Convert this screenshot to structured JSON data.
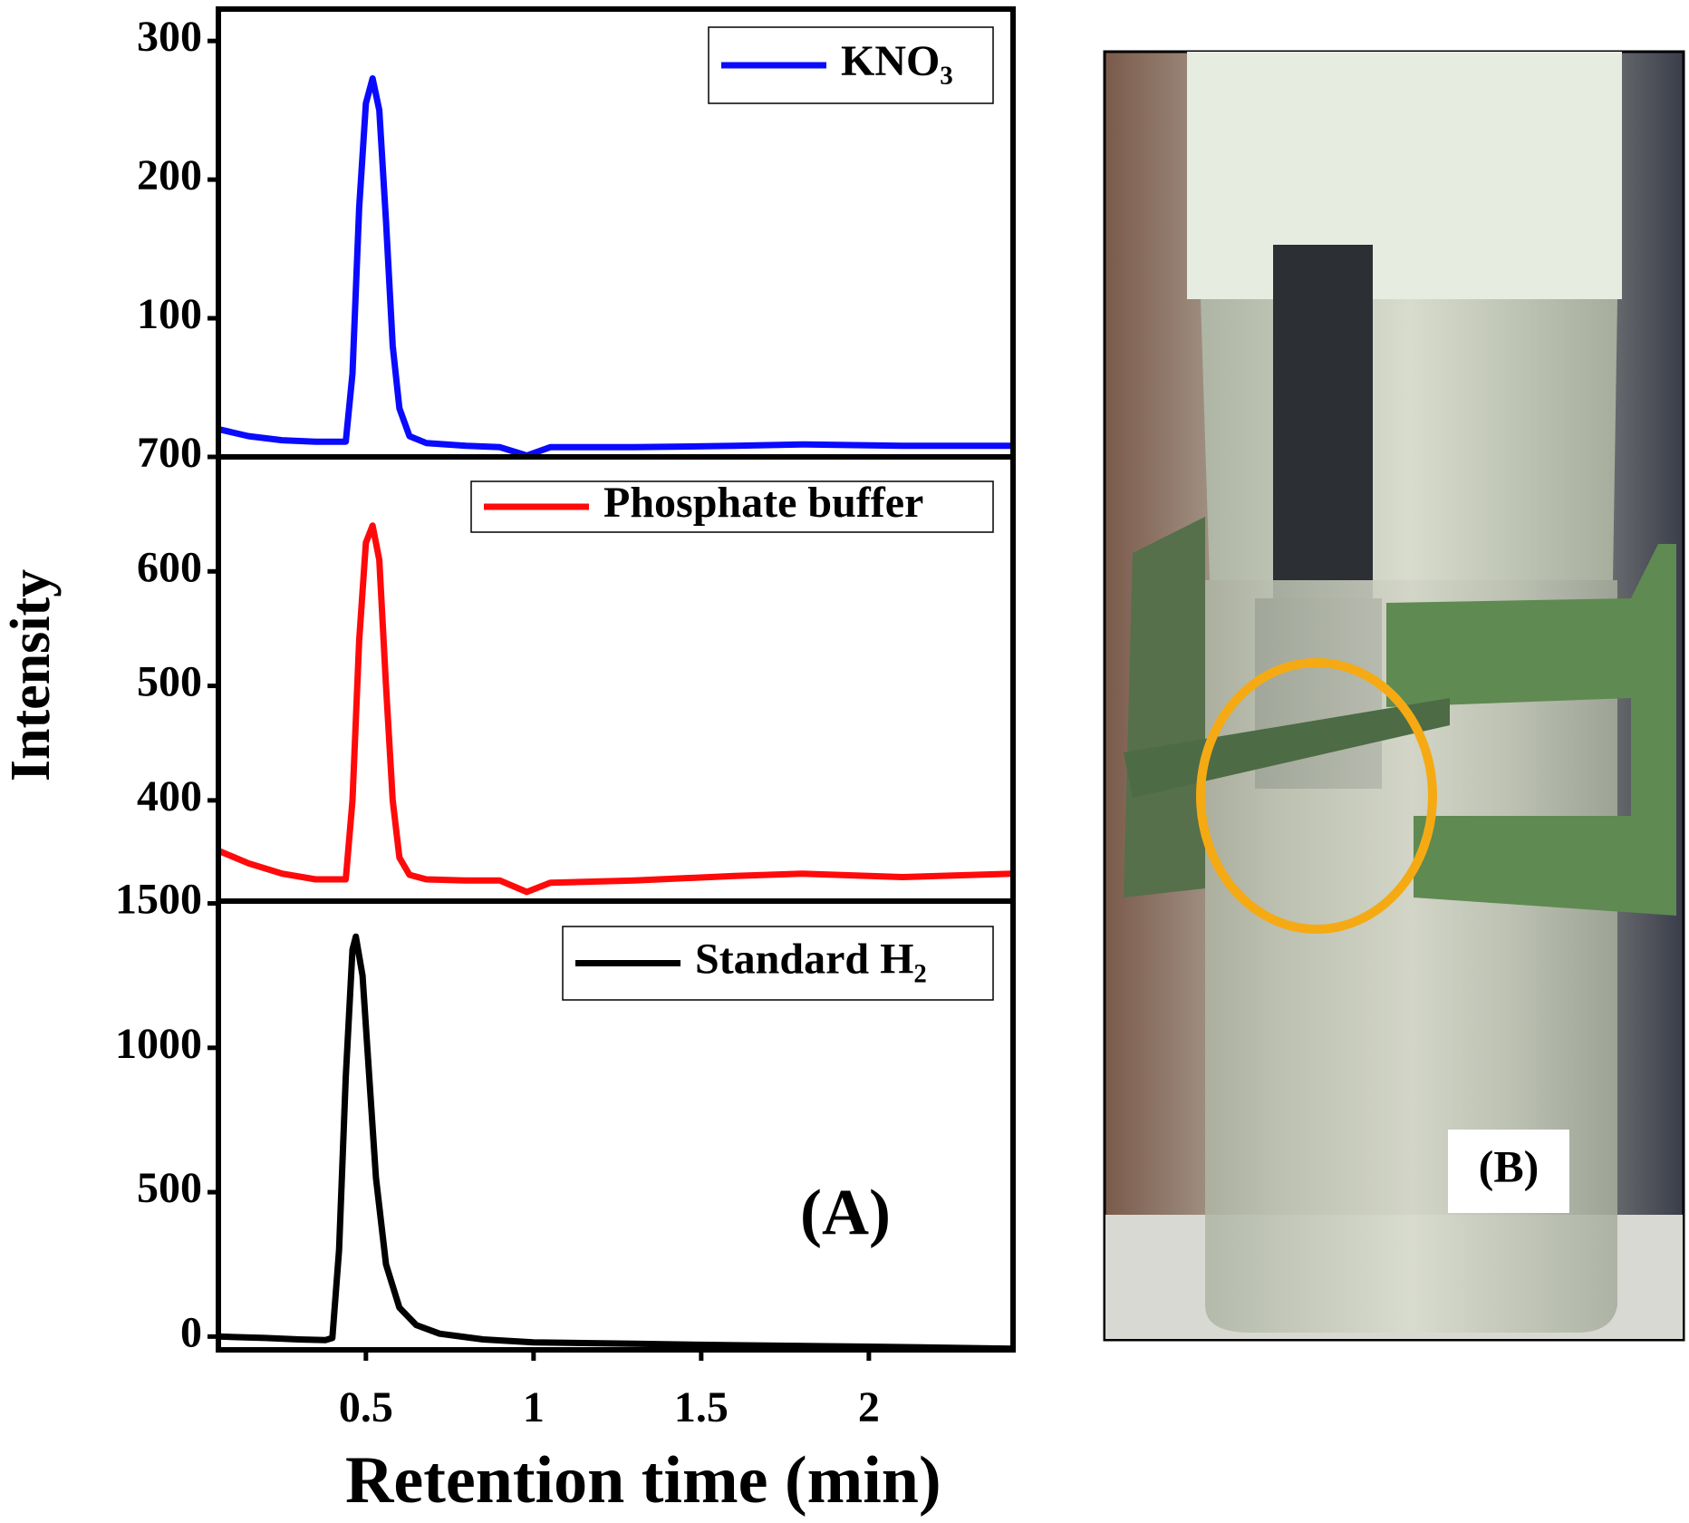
{
  "chart_data": [
    {
      "type": "line",
      "x": [
        0.06,
        0.15,
        0.25,
        0.35,
        0.44,
        0.46,
        0.48,
        0.5,
        0.52,
        0.54,
        0.56,
        0.58,
        0.6,
        0.63,
        0.68,
        0.8,
        0.9,
        0.98,
        1.05,
        1.3,
        1.6,
        1.8,
        2.1,
        2.43
      ],
      "series": [
        {
          "name": "KNO₃",
          "color": "#0a0aff",
          "values": [
            20,
            15,
            12,
            11,
            11,
            60,
            180,
            255,
            273,
            250,
            170,
            80,
            35,
            15,
            10,
            8,
            7,
            1,
            7,
            7,
            8,
            9,
            8,
            8
          ]
        }
      ],
      "ylim": [
        0,
        323
      ],
      "yticks": [
        100,
        200,
        300
      ]
    },
    {
      "type": "line",
      "x": [
        0.06,
        0.15,
        0.25,
        0.35,
        0.44,
        0.46,
        0.48,
        0.5,
        0.52,
        0.54,
        0.56,
        0.58,
        0.6,
        0.63,
        0.68,
        0.8,
        0.9,
        0.98,
        1.05,
        1.3,
        1.6,
        1.8,
        2.1,
        2.43
      ],
      "series": [
        {
          "name": "Phosphate buffer",
          "color": "#ff0a0a",
          "values": [
            356,
            345,
            336,
            331,
            331,
            400,
            540,
            625,
            640,
            610,
            500,
            400,
            350,
            335,
            331,
            330,
            330,
            320,
            328,
            330,
            334,
            336,
            333,
            336
          ]
        }
      ],
      "ylim": [
        312,
        700
      ],
      "yticks": [
        400,
        500,
        600,
        700
      ],
      "ylabel": "Intensity"
    },
    {
      "type": "line",
      "x": [
        0.06,
        0.2,
        0.3,
        0.38,
        0.4,
        0.42,
        0.44,
        0.46,
        0.47,
        0.49,
        0.51,
        0.53,
        0.56,
        0.6,
        0.65,
        0.72,
        0.85,
        1.0,
        1.3,
        1.6,
        2.0,
        2.43
      ],
      "series": [
        {
          "name": "Standard H₂",
          "color": "#000000",
          "values": [
            0,
            -5,
            -10,
            -12,
            -5,
            300,
            900,
            1340,
            1385,
            1250,
            900,
            550,
            250,
            100,
            40,
            10,
            -10,
            -20,
            -25,
            -30,
            -35,
            -42
          ]
        }
      ],
      "ylim": [
        -46,
        1508
      ],
      "yticks": [
        0,
        500,
        1000,
        1500
      ],
      "xlim": [
        0.06,
        2.43
      ],
      "xticks": [
        0.5,
        1.0,
        1.5,
        2.0
      ],
      "xlabel": "Retention time (min)",
      "annotation": "(A)"
    }
  ],
  "photo": {
    "label": "(B)"
  }
}
